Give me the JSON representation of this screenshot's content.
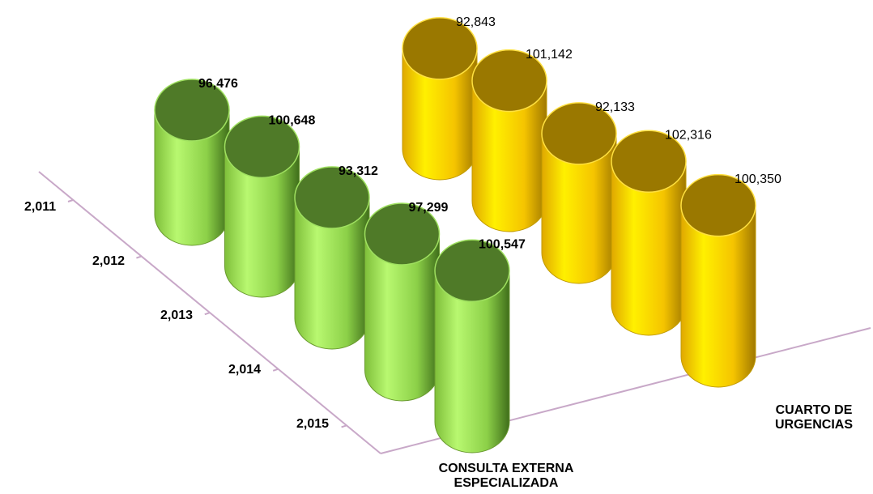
{
  "chart_data": {
    "type": "cylinder3d",
    "categories": [
      "2,011",
      "2,012",
      "2,013",
      "2,014",
      "2,015"
    ],
    "series": [
      {
        "name": "CONSULTA EXTERNA ESPECIALIZADA",
        "color": "#8fd44a",
        "values": [
          96476,
          100648,
          93312,
          97299,
          100547
        ],
        "value_labels": [
          "96,476",
          "100,648",
          "93,312",
          "97,299",
          "100,547"
        ]
      },
      {
        "name": "CUARTO DE URGENCIAS",
        "color": "#f5c400",
        "values": [
          92843,
          101142,
          92133,
          102316,
          100350
        ],
        "value_labels": [
          "92,843",
          "101,142",
          "92,133",
          "102,316",
          "100,350"
        ]
      }
    ]
  }
}
